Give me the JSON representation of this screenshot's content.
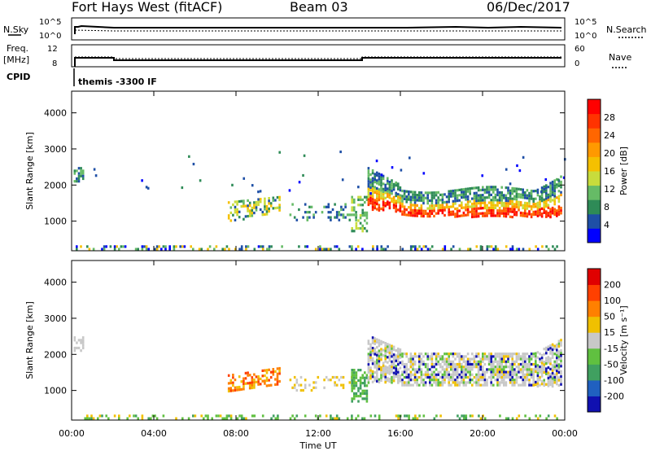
{
  "header": {
    "radar": "Fort Hays West (fitACF)",
    "beam": "Beam 03",
    "date": "06/Dec/2017"
  },
  "top_panels": {
    "left_labels": [
      "N.Sky",
      "Freq.",
      "[MHz]",
      "CPID"
    ],
    "right_labels": [
      "N.Search",
      "Nave"
    ],
    "noise_ticks_left": [
      "10^5",
      "10^0"
    ],
    "noise_ticks_right": [
      "10^5",
      "10^0"
    ],
    "freq_ticks": [
      "12",
      "8"
    ],
    "nave_ticks": [
      "60",
      "0"
    ],
    "cpid_text": "themis -3300 IF"
  },
  "chart_data": [
    {
      "type": "heatmap",
      "name": "power",
      "ylabel": "Slant Range [km]",
      "yticks": [
        "4000",
        "3000",
        "2000",
        "1000"
      ],
      "ylim": [
        180,
        4600
      ],
      "colorbar_label": "Power [dB]",
      "colorbar_ticks": [
        "28",
        "24",
        "20",
        "16",
        "12",
        "8",
        "4"
      ],
      "colors": [
        "#0000ff",
        "#1e4fa6",
        "#2e8b57",
        "#66bb66",
        "#c8dc3c",
        "#f5c000",
        "#ff9900",
        "#ff6600",
        "#ff3300",
        "#ff0000"
      ]
    },
    {
      "type": "heatmap",
      "name": "velocity",
      "ylabel": "Slant Range [km]",
      "yticks": [
        "4000",
        "3000",
        "2000",
        "1000"
      ],
      "ylim": [
        180,
        4600
      ],
      "colorbar_label": "Velocity [m s⁻¹]",
      "colorbar_ticks": [
        "200",
        "100",
        "50",
        "15",
        "-15",
        "-50",
        "-100",
        "-200"
      ],
      "colors": [
        "#1010b0",
        "#2060c0",
        "#40a060",
        "#60c040",
        "#c8c8c8",
        "#f0c000",
        "#ff8000",
        "#ff4000",
        "#e00000"
      ]
    }
  ],
  "xaxis": {
    "ticks": [
      "00:00",
      "04:00",
      "08:00",
      "12:00",
      "16:00",
      "20:00",
      "00:00"
    ],
    "label": "Time UT"
  }
}
